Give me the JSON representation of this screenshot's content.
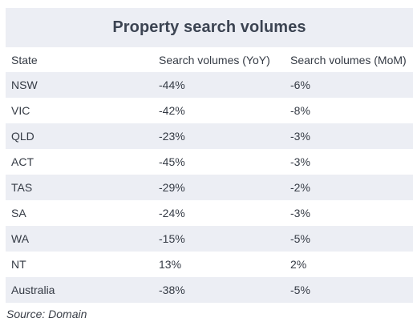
{
  "title": "Property search volumes",
  "columns": [
    "State",
    "Search volumes (YoY)",
    "Search volumes (MoM)"
  ],
  "rows": [
    [
      "NSW",
      "-44%",
      "-6%"
    ],
    [
      "VIC",
      "-42%",
      "-8%"
    ],
    [
      "QLD",
      "-23%",
      "-3%"
    ],
    [
      "ACT",
      "-45%",
      "-3%"
    ],
    [
      "TAS",
      "-29%",
      "-2%"
    ],
    [
      "SA",
      "-24%",
      "-3%"
    ],
    [
      "WA",
      "-15%",
      "-5%"
    ],
    [
      "NT",
      "13%",
      "2%"
    ],
    [
      "Australia",
      "-38%",
      "-5%"
    ]
  ],
  "source": "Source: Domain",
  "colors": {
    "stripe": "#eceef4",
    "title_text": "#3c4452",
    "body_text": "#353b45"
  }
}
